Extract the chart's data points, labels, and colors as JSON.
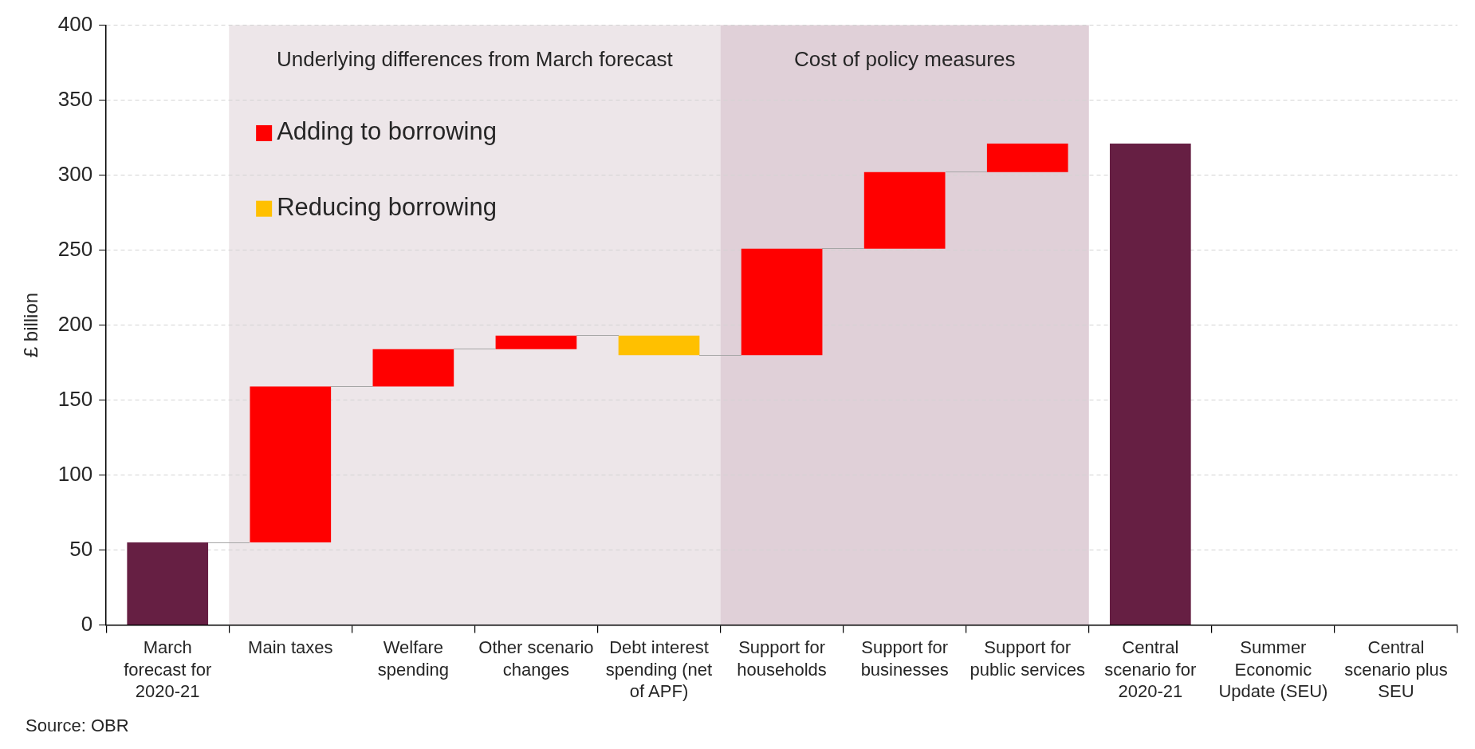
{
  "chart_data": {
    "type": "bar",
    "ylabel": "£ billion",
    "categories": [
      "March forecast for 2020-21",
      "Main taxes",
      "Welfare spending",
      "Other scenario changes",
      "Debt interest spending (net of APF)",
      "Support for households",
      "Support for businesses",
      "Support for public services",
      "Central scenario for 2020-21",
      "Summer Economic Update (SEU)",
      "Central scenario plus SEU"
    ],
    "series": [
      {
        "color": "#661f43",
        "values": [
          55,
          null,
          null,
          null,
          null,
          null,
          null,
          null,
          321,
          null,
          null
        ]
      },
      {
        "name": "Adding to borrowing",
        "color": "#ff0000",
        "values": [
          null,
          104,
          25,
          9,
          null,
          71,
          51,
          19,
          null,
          null,
          null
        ],
        "base": [
          null,
          55,
          159,
          184,
          null,
          180,
          251,
          302,
          null,
          null,
          null
        ]
      },
      {
        "name": "Reducing borrowing",
        "color": "#ffc000",
        "values": [
          null,
          null,
          null,
          null,
          -13,
          null,
          null,
          null,
          null,
          null,
          null
        ],
        "base": [
          null,
          null,
          null,
          null,
          193,
          null,
          null,
          null,
          null,
          null,
          null
        ]
      }
    ],
    "ylim": [
      0,
      400
    ],
    "yticks": [
      0,
      50,
      100,
      150,
      200,
      250,
      300,
      350,
      400
    ],
    "grid": "y",
    "legend": "top left",
    "bands": [
      {
        "axis": "x",
        "from": "Main taxes",
        "to": "Debt interest spending (net of APF)",
        "label": "Underlying differences from March forecast",
        "color": "#ede6e9"
      },
      {
        "axis": "x",
        "from": "Support for households",
        "to": "Support for public services",
        "label": "Cost of policy measures",
        "color": "#e0d0d8"
      }
    ],
    "annotations": [
      "Source: OBR"
    ]
  }
}
